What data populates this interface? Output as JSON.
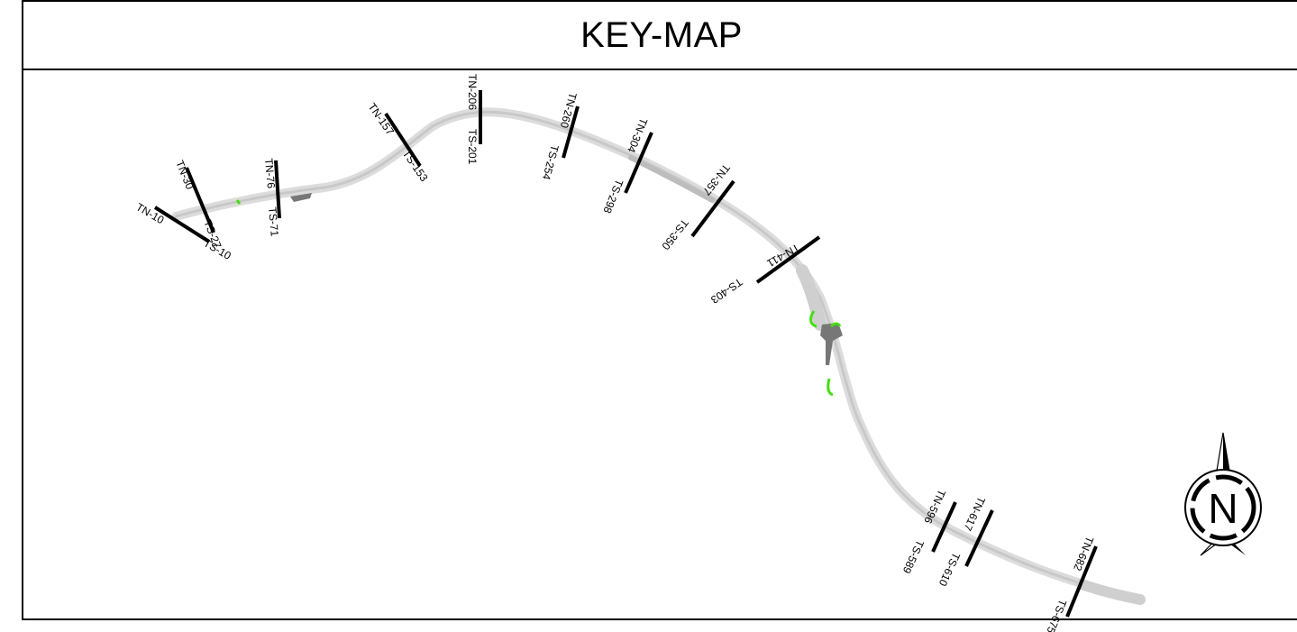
{
  "title": "KEY-MAP",
  "colors": {
    "route": "#dcdcdc",
    "section_line": "#000000",
    "green_feature": "#44dd11",
    "dark_feature": "#777777"
  },
  "north_arrow": {
    "icon": "north-arrow-icon",
    "label": "N"
  },
  "sections": [
    {
      "tn": "TN-10",
      "ts": "TS-10"
    },
    {
      "tn": "TN-30",
      "ts": "TS-27"
    },
    {
      "tn": "TN-76",
      "ts": "TS-71"
    },
    {
      "tn": "TN-157",
      "ts": "TS-153"
    },
    {
      "tn": "TN-206",
      "ts": "TS-201"
    },
    {
      "tn": "TN-260",
      "ts": "TS-254"
    },
    {
      "tn": "TN-304",
      "ts": "TS-298"
    },
    {
      "tn": "TN-357",
      "ts": "TS-350"
    },
    {
      "tn": "TN-411",
      "ts": "TS-403"
    },
    {
      "tn": "TN-596",
      "ts": "TS-589"
    },
    {
      "tn": "TN-617",
      "ts": "TS-610"
    },
    {
      "tn": "TN-682",
      "ts": "TS-675"
    }
  ]
}
